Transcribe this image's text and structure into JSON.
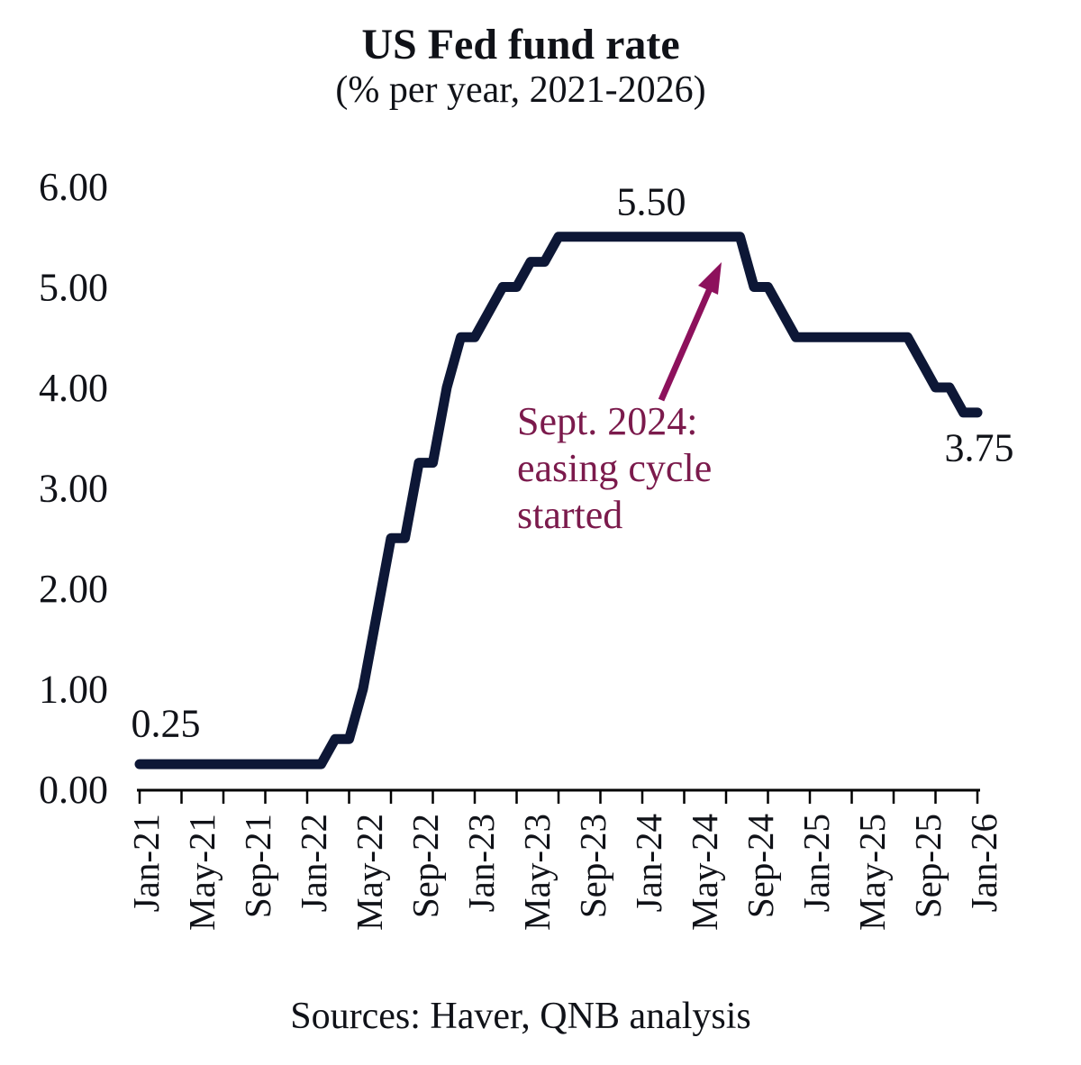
{
  "title": "US Fed fund rate",
  "subtitle": "(% per year, 2021-2026)",
  "source_note": "Sources: Haver, QNB analysis",
  "annotation": {
    "text": "Sept. 2024:\neasing cycle\nstarted"
  },
  "point_labels": {
    "start": "0.25",
    "peak": "5.50",
    "end": "3.75"
  },
  "colors": {
    "line": "#0d1736",
    "axis": "#000000",
    "label_text": "#101218",
    "annotation_text": "#7b1a4c",
    "arrow": "#8d115c"
  },
  "chart_data": {
    "type": "line",
    "title": "US Fed fund rate",
    "subtitle": "(% per year, 2021-2026)",
    "x_start": "Jan-21",
    "x_end": "Jan-26",
    "frequency": "monthly",
    "x_tick_labels": [
      "Jan-21",
      "May-21",
      "Sep-21",
      "Jan-22",
      "May-22",
      "Sep-22",
      "Jan-23",
      "May-23",
      "Sep-23",
      "Jan-24",
      "May-24",
      "Sep-24",
      "Jan-25",
      "May-25",
      "Sep-25",
      "Jan-26"
    ],
    "x_label_interval_months": 4,
    "x_tick_interval_months": 3,
    "y_tick_labels": [
      "6.00",
      "5.00",
      "4.00",
      "3.00",
      "2.00",
      "1.00",
      "0.00"
    ],
    "ylim": [
      0,
      6
    ],
    "grid": false,
    "legend": "none",
    "series": [
      {
        "name": "US Fed fund rate (% per year)",
        "monthly_values": [
          0.25,
          0.25,
          0.25,
          0.25,
          0.25,
          0.25,
          0.25,
          0.25,
          0.25,
          0.25,
          0.25,
          0.25,
          0.25,
          0.25,
          0.5,
          0.5,
          1.0,
          1.75,
          2.5,
          2.5,
          3.25,
          3.25,
          4.0,
          4.5,
          4.5,
          4.75,
          5.0,
          5.0,
          5.25,
          5.25,
          5.5,
          5.5,
          5.5,
          5.5,
          5.5,
          5.5,
          5.5,
          5.5,
          5.5,
          5.5,
          5.5,
          5.5,
          5.5,
          5.5,
          5.0,
          5.0,
          4.75,
          4.5,
          4.5,
          4.5,
          4.5,
          4.5,
          4.5,
          4.5,
          4.5,
          4.5,
          4.25,
          4.0,
          4.0,
          3.75,
          3.75
        ]
      }
    ],
    "annotations": [
      {
        "text": "Sept. 2024: easing cycle started",
        "target": "Sep-24 start of rate cuts"
      },
      {
        "text": "0.25",
        "at": "Jan-21"
      },
      {
        "text": "5.50",
        "at": "Jul-23 to Aug-24 plateau"
      },
      {
        "text": "3.75",
        "at": "Jan-26"
      }
    ]
  }
}
